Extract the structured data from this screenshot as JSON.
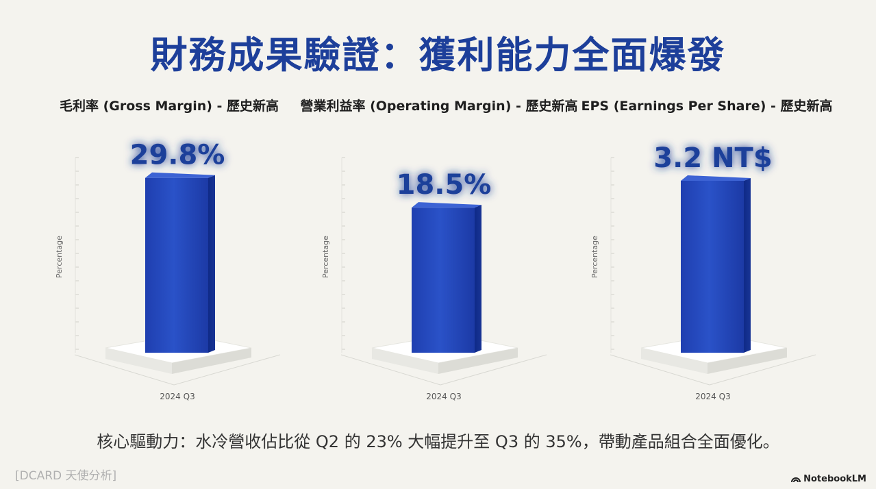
{
  "title": "財務成果驗證：獲利能力全面爆發",
  "chart_data": [
    {
      "type": "bar",
      "title": "毛利率 (Gross Margin) - 歷史新高",
      "categories": [
        "2024 Q3"
      ],
      "values": [
        29.8
      ],
      "value_label": "29.8%",
      "ylabel": "Percentage",
      "xlabel": "",
      "ylim": [
        0,
        30
      ],
      "color": "#2347b8"
    },
    {
      "type": "bar",
      "title": "營業利益率 (Operating Margin) - 歷史新高",
      "categories": [
        "2024 Q3"
      ],
      "values": [
        18.5
      ],
      "value_label": "18.5%",
      "ylabel": "Percentage",
      "xlabel": "",
      "ylim": [
        0,
        20
      ],
      "color": "#2347b8"
    },
    {
      "type": "bar",
      "title": "EPS (Earnings Per Share) - 歷史新高",
      "categories": [
        "2024 Q3"
      ],
      "values": [
        3.2
      ],
      "value_label": "3.2 NT$",
      "ylabel": "Percentage",
      "xlabel": "",
      "ylim": [
        0,
        3.2
      ],
      "color": "#2347b8"
    }
  ],
  "footer": {
    "summary": "核心驅動力：水冷營收佔比從 Q2 的 23% 大幅提升至 Q3 的 35%，帶動產品組合全面優化。",
    "source": "[DCARD 天使分析]",
    "brand": "NotebookLM",
    "brand_icon": "notebooklm-logo-icon"
  }
}
